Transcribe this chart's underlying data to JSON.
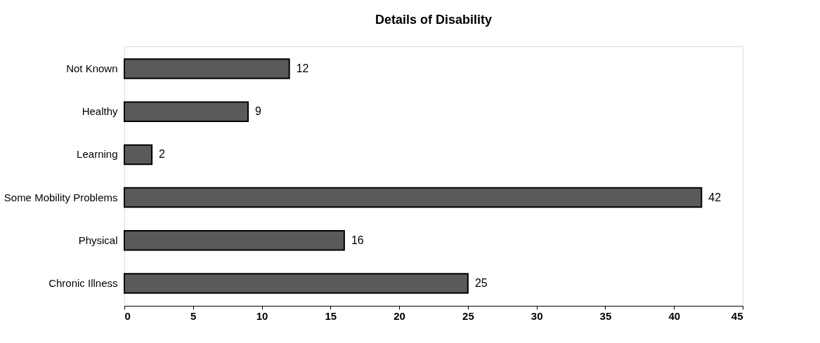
{
  "chart_data": {
    "type": "bar",
    "title": "Details of Disability",
    "orientation": "horizontal",
    "categories": [
      "Not Known",
      "Healthy",
      "Learning",
      "Some Mobility Problems",
      "Physical",
      "Chronic Illness"
    ],
    "values": [
      12,
      9,
      2,
      42,
      16,
      25
    ],
    "color": "#5a5a5a",
    "xlim": [
      0,
      45
    ],
    "xticks": [
      0,
      5,
      10,
      15,
      20,
      25,
      30,
      35,
      40,
      45
    ],
    "grid": false,
    "data_labels": true
  }
}
